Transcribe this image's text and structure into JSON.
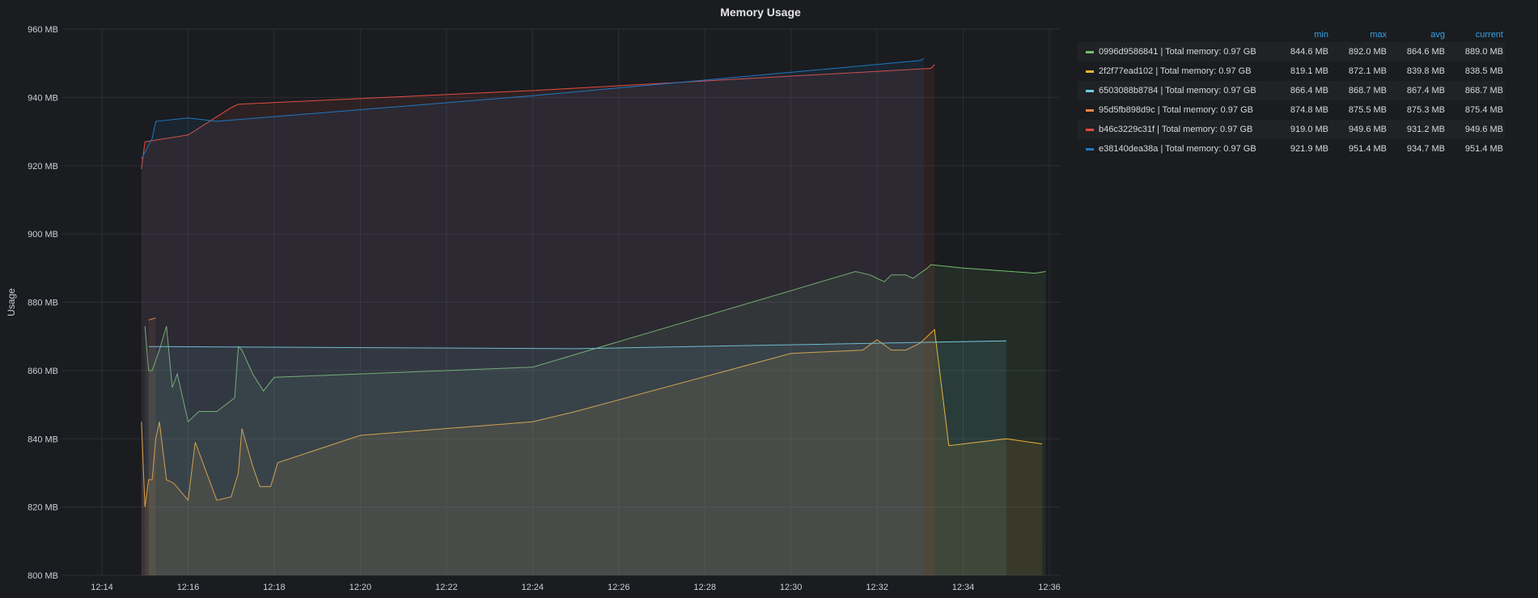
{
  "panel": {
    "title": "Memory Usage"
  },
  "legend": {
    "columns": [
      "min",
      "max",
      "avg",
      "current"
    ],
    "rows": [
      {
        "name": "0996d9586841 | Total memory: 0.97 GB",
        "color": "#73bf69",
        "min": "844.6 MB",
        "max": "892.0 MB",
        "avg": "864.6 MB",
        "current": "889.0 MB"
      },
      {
        "name": "2f2f77ead102 | Total memory: 0.97 GB",
        "color": "#f2b134",
        "min": "819.1 MB",
        "max": "872.1 MB",
        "avg": "839.8 MB",
        "current": "838.5 MB"
      },
      {
        "name": "6503088b8784 | Total memory: 0.97 GB",
        "color": "#6ed0e0",
        "min": "866.4 MB",
        "max": "868.7 MB",
        "avg": "867.4 MB",
        "current": "868.7 MB"
      },
      {
        "name": "95d5fb898d9c | Total memory: 0.97 GB",
        "color": "#ef843c",
        "min": "874.8 MB",
        "max": "875.5 MB",
        "avg": "875.3 MB",
        "current": "875.4 MB"
      },
      {
        "name": "b46c3229c31f | Total memory: 0.97 GB",
        "color": "#e24d42",
        "min": "919.0 MB",
        "max": "949.6 MB",
        "avg": "931.2 MB",
        "current": "949.6 MB"
      },
      {
        "name": "e38140dea38a | Total memory: 0.97 GB",
        "color": "#1f78c1",
        "min": "921.9 MB",
        "max": "951.4 MB",
        "avg": "934.7 MB",
        "current": "951.4 MB"
      }
    ]
  },
  "chart_data": {
    "type": "area",
    "title": "Memory Usage",
    "xlabel": "",
    "ylabel": "Usage",
    "x_ticks": [
      "12:14",
      "12:16",
      "12:18",
      "12:20",
      "12:22",
      "12:24",
      "12:26",
      "12:28",
      "12:30",
      "12:32",
      "12:34",
      "12:36"
    ],
    "y_ticks": [
      "800 MB",
      "820 MB",
      "840 MB",
      "860 MB",
      "880 MB",
      "900 MB",
      "920 MB",
      "940 MB",
      "960 MB"
    ],
    "ylim": [
      800,
      960
    ],
    "xlim": [
      "12:14",
      "12:36"
    ],
    "grid": true,
    "legend_position": "right",
    "series": [
      {
        "name": "0996d9586841 | Total memory: 0.97 GB",
        "color": "#73bf69",
        "x": [
          "12:15:00",
          "12:15:05",
          "12:15:10",
          "12:15:20",
          "12:15:30",
          "12:15:38",
          "12:15:45",
          "12:16:00",
          "12:16:15",
          "12:16:40",
          "12:17:05",
          "12:17:10",
          "12:17:15",
          "12:17:30",
          "12:17:45",
          "12:18:00",
          "12:24:00",
          "12:31:30",
          "12:31:50",
          "12:32:00",
          "12:32:10",
          "12:32:20",
          "12:32:40",
          "12:32:50",
          "12:33:10",
          "12:33:15",
          "12:34:00",
          "12:35:40",
          "12:35:55"
        ],
        "y": [
          873,
          860,
          860,
          866,
          873,
          855,
          859,
          845,
          848,
          848,
          852,
          867,
          866,
          859,
          854,
          858,
          861,
          889,
          888,
          887,
          886,
          888,
          888,
          887,
          890,
          891,
          890,
          888.5,
          889
        ]
      },
      {
        "name": "2f2f77ead102 | Total memory: 0.97 GB",
        "color": "#f2b134",
        "x": [
          "12:14:55",
          "12:15:00",
          "12:15:05",
          "12:15:10",
          "12:15:15",
          "12:15:20",
          "12:15:30",
          "12:15:40",
          "12:16:00",
          "12:16:10",
          "12:16:40",
          "12:17:00",
          "12:17:10",
          "12:17:15",
          "12:17:30",
          "12:17:40",
          "12:17:55",
          "12:18:05",
          "12:20:00",
          "12:24:00",
          "12:25:00",
          "12:30:00",
          "12:31:40",
          "12:32:00",
          "12:32:20",
          "12:32:40",
          "12:33:00",
          "12:33:20",
          "12:33:40",
          "12:34:00",
          "12:35:00",
          "12:35:50"
        ],
        "y": [
          845,
          820,
          828,
          828,
          840,
          845,
          828,
          827,
          822,
          839,
          822,
          823,
          830,
          843,
          832,
          826,
          826,
          833,
          841,
          845,
          848,
          865,
          866,
          869,
          866,
          866,
          868,
          872,
          838,
          838.5,
          840,
          838.5
        ]
      },
      {
        "name": "6503088b8784 | Total memory: 0.97 GB",
        "color": "#6ed0e0",
        "x": [
          "12:15:05",
          "12:25:00",
          "12:35:00"
        ],
        "y": [
          867,
          866.4,
          868.7
        ]
      },
      {
        "name": "95d5fb898d9c | Total memory: 0.97 GB",
        "color": "#ef843c",
        "x": [
          "12:15:05",
          "12:15:15"
        ],
        "y": [
          874.8,
          875.4
        ]
      },
      {
        "name": "b46c3229c31f | Total memory: 0.97 GB",
        "color": "#e24d42",
        "x": [
          "12:14:55",
          "12:15:00",
          "12:15:30",
          "12:16:00",
          "12:17:00",
          "12:17:10",
          "12:24:00",
          "12:33:15",
          "12:33:20"
        ],
        "y": [
          919,
          927,
          928,
          929,
          937,
          938,
          942,
          948.5,
          949.6
        ]
      },
      {
        "name": "e38140dea38a | Total memory: 0.97 GB",
        "color": "#1f78c1",
        "x": [
          "12:14:55",
          "12:15:10",
          "12:15:15",
          "12:16:00",
          "12:16:40",
          "12:24:00",
          "12:33:00",
          "12:33:05"
        ],
        "y": [
          922,
          928,
          933,
          934,
          933,
          940.5,
          950.8,
          951.4
        ]
      }
    ]
  }
}
